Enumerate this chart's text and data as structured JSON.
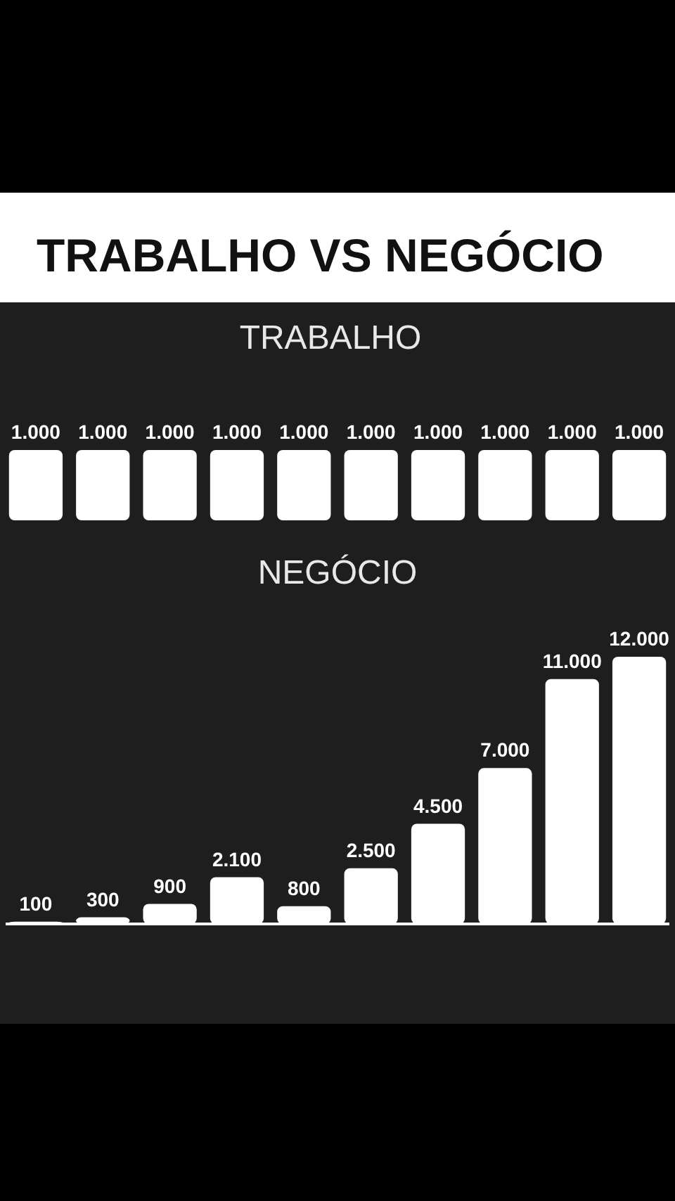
{
  "chart_data": [
    {
      "type": "bar",
      "title": "TRABALHO VS NEGÓCIO",
      "subtitle": "TRABALHO",
      "categories": [
        null,
        null,
        null,
        null,
        null,
        null,
        null,
        null,
        null,
        null
      ],
      "values": [
        1000,
        1000,
        1000,
        1000,
        1000,
        1000,
        1000,
        1000,
        1000,
        1000
      ],
      "value_labels": [
        "1.000",
        "1.000",
        "1.000",
        "1.000",
        "1.000",
        "1.000",
        "1.000",
        "1.000",
        "1.000",
        "1.000"
      ],
      "color": "#ffffff"
    },
    {
      "type": "bar",
      "title": "NEGÓCIO",
      "categories": [
        null,
        null,
        null,
        null,
        null,
        null,
        null,
        null,
        null,
        null
      ],
      "values": [
        100,
        300,
        900,
        2100,
        800,
        2500,
        4500,
        7000,
        11000,
        12000
      ],
      "value_labels": [
        "100",
        "300",
        "900",
        "2.100",
        "800",
        "2.500",
        "4.500",
        "7.000",
        "11.000",
        "12.000"
      ],
      "color": "#ffffff"
    }
  ]
}
